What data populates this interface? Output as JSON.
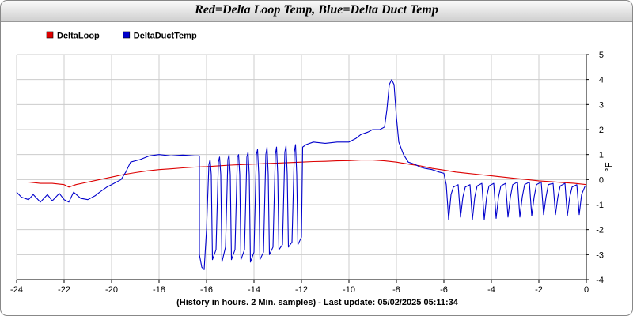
{
  "chart_data": {
    "type": "line",
    "title": "Red=Delta Loop Temp, Blue=Delta Duct Temp",
    "xlabel": "(History in hours. 2 Min. samples) - Last update: 05/02/2025 05:11:34",
    "ylabel": "°F",
    "xlim": [
      -24,
      0
    ],
    "ylim": [
      -4,
      5
    ],
    "x_ticks": [
      -24,
      -22,
      -20,
      -18,
      -16,
      -14,
      -12,
      -10,
      -8,
      -6,
      -4,
      -2,
      0
    ],
    "y_ticks": [
      -4,
      -3,
      -2,
      -1,
      0,
      1,
      2,
      3,
      4,
      5
    ],
    "grid": true,
    "legend_position": "top-left",
    "series": [
      {
        "name": "DeltaLoop",
        "color": "#dd0000",
        "points": [
          [
            -24,
            -0.1
          ],
          [
            -23.5,
            -0.1
          ],
          [
            -23,
            -0.15
          ],
          [
            -22.5,
            -0.15
          ],
          [
            -22,
            -0.2
          ],
          [
            -21.8,
            -0.3
          ],
          [
            -21.5,
            -0.2
          ],
          [
            -21,
            -0.1
          ],
          [
            -20.5,
            0
          ],
          [
            -20,
            0.1
          ],
          [
            -19.5,
            0.2
          ],
          [
            -19,
            0.28
          ],
          [
            -18.5,
            0.35
          ],
          [
            -18,
            0.4
          ],
          [
            -17.5,
            0.43
          ],
          [
            -17,
            0.47
          ],
          [
            -16.5,
            0.5
          ],
          [
            -16,
            0.52
          ],
          [
            -15.5,
            0.55
          ],
          [
            -15,
            0.58
          ],
          [
            -14.5,
            0.6
          ],
          [
            -14,
            0.62
          ],
          [
            -13.5,
            0.64
          ],
          [
            -13,
            0.66
          ],
          [
            -12.5,
            0.68
          ],
          [
            -12,
            0.7
          ],
          [
            -11.5,
            0.72
          ],
          [
            -11,
            0.73
          ],
          [
            -10.5,
            0.75
          ],
          [
            -10,
            0.76
          ],
          [
            -9.5,
            0.78
          ],
          [
            -9,
            0.78
          ],
          [
            -8.5,
            0.75
          ],
          [
            -8,
            0.7
          ],
          [
            -7.5,
            0.62
          ],
          [
            -7,
            0.55
          ],
          [
            -6.5,
            0.45
          ],
          [
            -6,
            0.38
          ],
          [
            -5.5,
            0.3
          ],
          [
            -5,
            0.25
          ],
          [
            -4.5,
            0.2
          ],
          [
            -4,
            0.15
          ],
          [
            -3.5,
            0.1
          ],
          [
            -3,
            0.05
          ],
          [
            -2.5,
            0
          ],
          [
            -2,
            -0.05
          ],
          [
            -1.5,
            -0.08
          ],
          [
            -1,
            -0.12
          ],
          [
            -0.5,
            -0.15
          ],
          [
            0,
            -0.2
          ]
        ]
      },
      {
        "name": "DeltaDuctTemp",
        "color": "#0000cc",
        "points": [
          [
            -24,
            -0.5
          ],
          [
            -23.8,
            -0.7
          ],
          [
            -23.5,
            -0.8
          ],
          [
            -23.3,
            -0.6
          ],
          [
            -23,
            -0.9
          ],
          [
            -22.7,
            -0.6
          ],
          [
            -22.5,
            -0.85
          ],
          [
            -22.2,
            -0.55
          ],
          [
            -22,
            -0.8
          ],
          [
            -21.8,
            -0.9
          ],
          [
            -21.6,
            -0.5
          ],
          [
            -21.3,
            -0.75
          ],
          [
            -21,
            -0.8
          ],
          [
            -20.7,
            -0.65
          ],
          [
            -20.5,
            -0.5
          ],
          [
            -20.2,
            -0.3
          ],
          [
            -20,
            -0.2
          ],
          [
            -19.6,
            0
          ],
          [
            -19.4,
            0.3
          ],
          [
            -19.2,
            0.7
          ],
          [
            -18.8,
            0.8
          ],
          [
            -18.4,
            0.95
          ],
          [
            -18,
            1
          ],
          [
            -17.5,
            0.95
          ],
          [
            -17,
            0.98
          ],
          [
            -16.5,
            0.95
          ],
          [
            -16.3,
            0.95
          ],
          [
            -16.3,
            -3.0
          ],
          [
            -16.2,
            -3.5
          ],
          [
            -16.1,
            -3.6
          ],
          [
            -16.0,
            -2.0
          ],
          [
            -15.9,
            0.6
          ],
          [
            -15.85,
            0.8
          ],
          [
            -15.8,
            0.2
          ],
          [
            -15.75,
            -3.2
          ],
          [
            -15.6,
            -2.8
          ],
          [
            -15.5,
            0.7
          ],
          [
            -15.45,
            0.9
          ],
          [
            -15.4,
            0.2
          ],
          [
            -15.35,
            -3.3
          ],
          [
            -15.2,
            -2.7
          ],
          [
            -15.1,
            0.8
          ],
          [
            -15.05,
            1.0
          ],
          [
            -15.0,
            0.2
          ],
          [
            -14.95,
            -3.2
          ],
          [
            -14.8,
            -2.8
          ],
          [
            -14.7,
            0.9
          ],
          [
            -14.65,
            1.0
          ],
          [
            -14.6,
            0.2
          ],
          [
            -14.55,
            -3.2
          ],
          [
            -14.4,
            -2.8
          ],
          [
            -14.3,
            0.9
          ],
          [
            -14.25,
            1.1
          ],
          [
            -14.2,
            0.2
          ],
          [
            -14.15,
            -3.3
          ],
          [
            -14.0,
            -2.9
          ],
          [
            -13.9,
            1.0
          ],
          [
            -13.85,
            1.2
          ],
          [
            -13.8,
            0.2
          ],
          [
            -13.75,
            -3.2
          ],
          [
            -13.6,
            -2.9
          ],
          [
            -13.5,
            1.0
          ],
          [
            -13.45,
            1.3
          ],
          [
            -13.4,
            0.2
          ],
          [
            -13.35,
            -3.0
          ],
          [
            -13.2,
            -2.7
          ],
          [
            -13.1,
            1.0
          ],
          [
            -13.05,
            1.3
          ],
          [
            -13.0,
            0.2
          ],
          [
            -12.95,
            -2.8
          ],
          [
            -12.8,
            -2.6
          ],
          [
            -12.7,
            1.1
          ],
          [
            -12.65,
            1.35
          ],
          [
            -12.6,
            0.2
          ],
          [
            -12.55,
            -2.7
          ],
          [
            -12.4,
            -2.5
          ],
          [
            -12.3,
            1.1
          ],
          [
            -12.25,
            1.4
          ],
          [
            -12.2,
            0.2
          ],
          [
            -12.15,
            -2.6
          ],
          [
            -12.0,
            -2.3
          ],
          [
            -11.95,
            1.3
          ],
          [
            -11.8,
            1.4
          ],
          [
            -11.5,
            1.5
          ],
          [
            -11,
            1.45
          ],
          [
            -10.5,
            1.5
          ],
          [
            -10,
            1.5
          ],
          [
            -9.7,
            1.65
          ],
          [
            -9.5,
            1.8
          ],
          [
            -9.2,
            1.9
          ],
          [
            -9,
            2.0
          ],
          [
            -8.7,
            2.0
          ],
          [
            -8.5,
            2.1
          ],
          [
            -8.4,
            2.8
          ],
          [
            -8.3,
            3.8
          ],
          [
            -8.2,
            4.0
          ],
          [
            -8.1,
            3.8
          ],
          [
            -8.0,
            2.5
          ],
          [
            -7.9,
            1.5
          ],
          [
            -7.7,
            1.0
          ],
          [
            -7.5,
            0.7
          ],
          [
            -7.2,
            0.6
          ],
          [
            -7,
            0.5
          ],
          [
            -6.8,
            0.45
          ],
          [
            -6.5,
            0.4
          ],
          [
            -6.2,
            0.3
          ],
          [
            -6.0,
            0.25
          ],
          [
            -5.9,
            -0.2
          ],
          [
            -5.8,
            -1.6
          ],
          [
            -5.7,
            -0.6
          ],
          [
            -5.6,
            -0.3
          ],
          [
            -5.4,
            -0.2
          ],
          [
            -5.3,
            -1.5
          ],
          [
            -5.2,
            -0.7
          ],
          [
            -5.1,
            -0.3
          ],
          [
            -4.9,
            -0.2
          ],
          [
            -4.8,
            -1.6
          ],
          [
            -4.7,
            -0.7
          ],
          [
            -4.6,
            -0.25
          ],
          [
            -4.4,
            -0.15
          ],
          [
            -4.3,
            -1.6
          ],
          [
            -4.2,
            -0.7
          ],
          [
            -4.1,
            -0.25
          ],
          [
            -3.9,
            -0.15
          ],
          [
            -3.8,
            -1.55
          ],
          [
            -3.7,
            -0.7
          ],
          [
            -3.6,
            -0.25
          ],
          [
            -3.4,
            -0.15
          ],
          [
            -3.3,
            -1.5
          ],
          [
            -3.2,
            -0.7
          ],
          [
            -3.1,
            -0.2
          ],
          [
            -2.9,
            -0.1
          ],
          [
            -2.8,
            -1.5
          ],
          [
            -2.7,
            -0.7
          ],
          [
            -2.6,
            -0.2
          ],
          [
            -2.4,
            -0.1
          ],
          [
            -2.3,
            -1.45
          ],
          [
            -2.2,
            -0.7
          ],
          [
            -2.1,
            -0.2
          ],
          [
            -1.9,
            -0.1
          ],
          [
            -1.8,
            -1.4
          ],
          [
            -1.7,
            -0.7
          ],
          [
            -1.6,
            -0.2
          ],
          [
            -1.4,
            -0.15
          ],
          [
            -1.3,
            -1.4
          ],
          [
            -1.2,
            -0.7
          ],
          [
            -1.1,
            -0.25
          ],
          [
            -0.9,
            -0.15
          ],
          [
            -0.8,
            -1.45
          ],
          [
            -0.7,
            -0.7
          ],
          [
            -0.6,
            -0.3
          ],
          [
            -0.4,
            -0.2
          ],
          [
            -0.3,
            -1.4
          ],
          [
            -0.2,
            -0.6
          ],
          [
            -0.05,
            -0.25
          ]
        ]
      }
    ]
  }
}
